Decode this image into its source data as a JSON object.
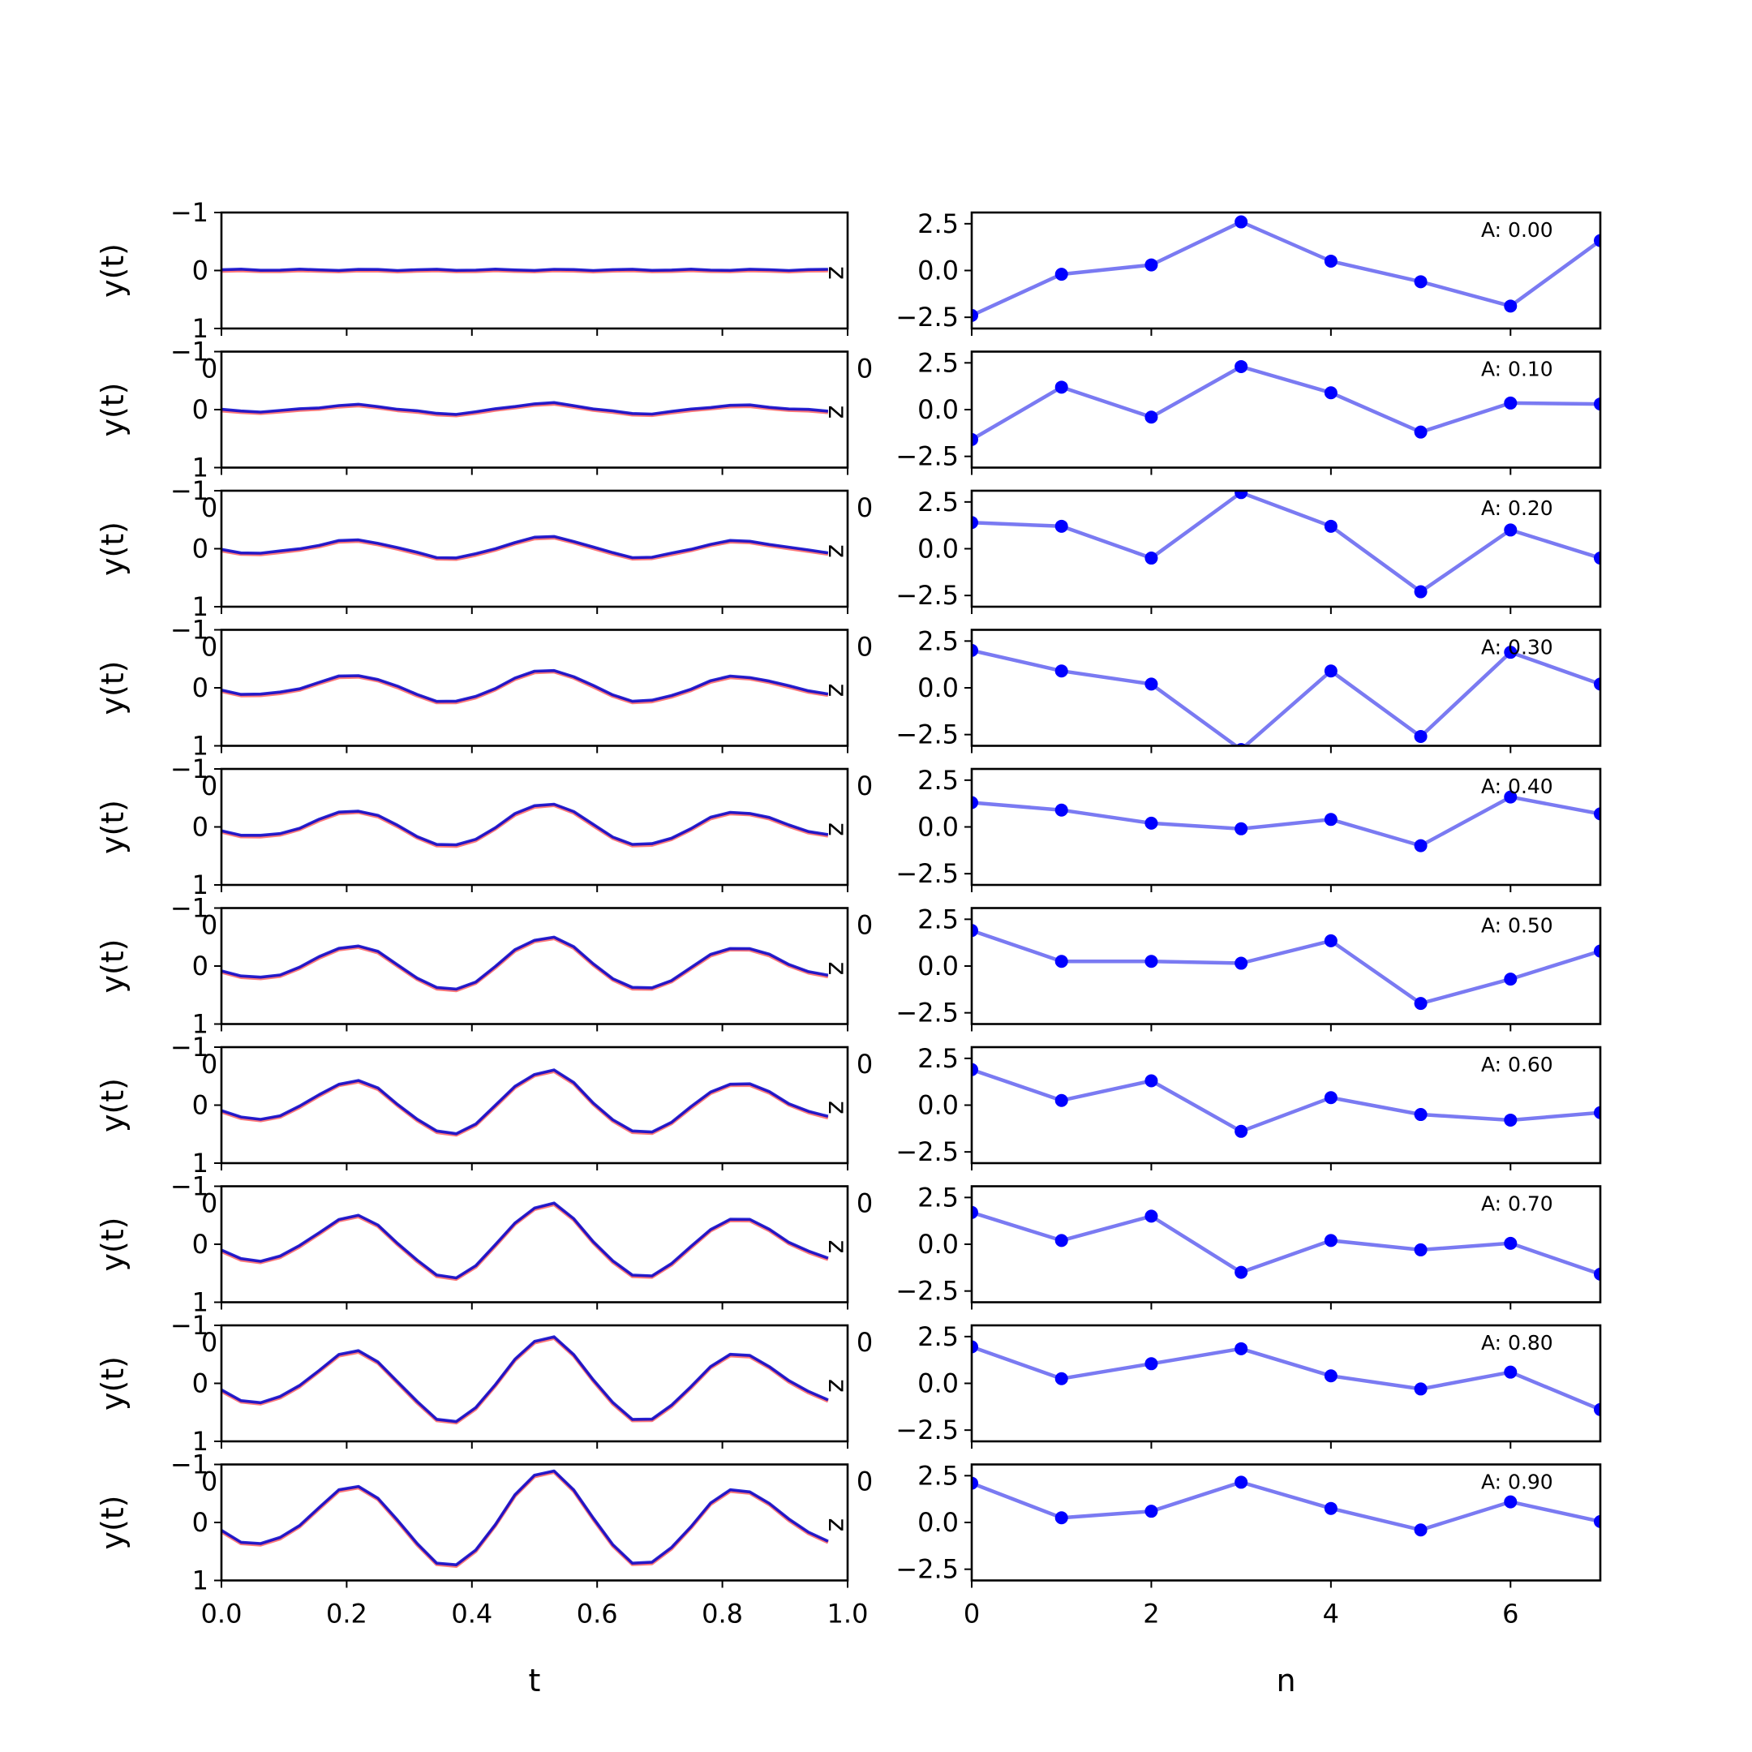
{
  "chart_data": [
    {
      "type": "line",
      "panel": "left",
      "xlabel": "t",
      "ylabel": "y(t)",
      "ylim": [
        -1,
        1
      ],
      "xlim": [
        0.0,
        1.0
      ],
      "xticks": [
        "0.0",
        "0.2",
        "0.4",
        "0.6",
        "0.8",
        "1.0"
      ],
      "yticks": [
        "−1",
        "0",
        "1"
      ],
      "corner_text": "z",
      "stray_tick_text": "0",
      "colors": {
        "series_a": "#ff6a6a",
        "series_b": "#0000cc",
        "overlap": "#7a1aa6"
      },
      "t": [
        0.0,
        0.03125,
        0.0625,
        0.09375,
        0.125,
        0.15625,
        0.1875,
        0.21875,
        0.25,
        0.28125,
        0.3125,
        0.34375,
        0.375,
        0.40625,
        0.4375,
        0.46875,
        0.5,
        0.53125,
        0.5625,
        0.59375,
        0.625,
        0.65625,
        0.6875,
        0.71875,
        0.75,
        0.78125,
        0.8125,
        0.84375,
        0.875,
        0.90625,
        0.9375,
        0.96875
      ],
      "base_shape": [
        -0.17,
        -0.38,
        -0.42,
        -0.31,
        -0.06,
        0.28,
        0.6,
        0.68,
        0.46,
        0.02,
        -0.42,
        -0.78,
        -0.83,
        -0.55,
        -0.04,
        0.52,
        0.88,
        0.98,
        0.62,
        0.06,
        -0.44,
        -0.78,
        -0.78,
        -0.5,
        -0.08,
        0.36,
        0.6,
        0.58,
        0.36,
        0.04,
        -0.2,
        -0.36
      ],
      "rows": [
        {
          "amplitude": 0.0
        },
        {
          "amplitude": 0.1
        },
        {
          "amplitude": 0.2
        },
        {
          "amplitude": 0.3
        },
        {
          "amplitude": 0.4
        },
        {
          "amplitude": 0.5
        },
        {
          "amplitude": 0.6
        },
        {
          "amplitude": 0.7
        },
        {
          "amplitude": 0.8
        },
        {
          "amplitude": 0.9
        }
      ]
    },
    {
      "type": "line",
      "panel": "right",
      "xlabel": "n",
      "ylim": [
        -3.1,
        3.1
      ],
      "xlim": [
        0,
        7
      ],
      "xticks": [
        0,
        2,
        4,
        6
      ],
      "yticks": [
        "2.5",
        "0.0",
        "−2.5"
      ],
      "stray_tick_text": "0",
      "colors": {
        "line": "#7a7af2",
        "marker": "#0000ff"
      },
      "n": [
        0,
        1,
        2,
        3,
        4,
        5,
        6,
        7
      ],
      "rows": [
        {
          "label": "A: 0.00",
          "values": [
            -2.4,
            -0.2,
            0.3,
            2.6,
            0.5,
            -0.6,
            -1.9,
            1.6
          ]
        },
        {
          "label": "A: 0.10",
          "values": [
            -1.6,
            1.2,
            -0.4,
            2.3,
            0.9,
            -1.2,
            0.35,
            0.3
          ]
        },
        {
          "label": "A: 0.20",
          "values": [
            1.4,
            1.2,
            -0.5,
            3.0,
            1.2,
            -2.3,
            1.0,
            -0.5
          ]
        },
        {
          "label": "A: 0.30",
          "values": [
            2.0,
            0.9,
            0.2,
            -3.3,
            0.9,
            -2.6,
            1.9,
            0.2
          ]
        },
        {
          "label": "A: 0.40",
          "values": [
            1.3,
            0.9,
            0.2,
            -0.1,
            0.4,
            -1.0,
            1.6,
            0.7
          ]
        },
        {
          "label": "A: 0.50",
          "values": [
            1.9,
            0.25,
            0.25,
            0.15,
            1.35,
            -2.0,
            -0.7,
            0.8
          ]
        },
        {
          "label": "A: 0.60",
          "values": [
            1.9,
            0.25,
            1.3,
            -1.4,
            0.4,
            -0.5,
            -0.8,
            -0.4
          ]
        },
        {
          "label": "A: 0.70",
          "values": [
            1.7,
            0.2,
            1.5,
            -1.5,
            0.2,
            -0.3,
            0.05,
            -1.6
          ]
        },
        {
          "label": "A: 0.80",
          "values": [
            1.95,
            0.25,
            1.05,
            1.85,
            0.4,
            -0.3,
            0.6,
            -1.4
          ]
        },
        {
          "label": "A: 0.90",
          "values": [
            2.1,
            0.25,
            0.6,
            2.15,
            0.75,
            -0.4,
            1.1,
            0.05
          ]
        }
      ]
    }
  ]
}
